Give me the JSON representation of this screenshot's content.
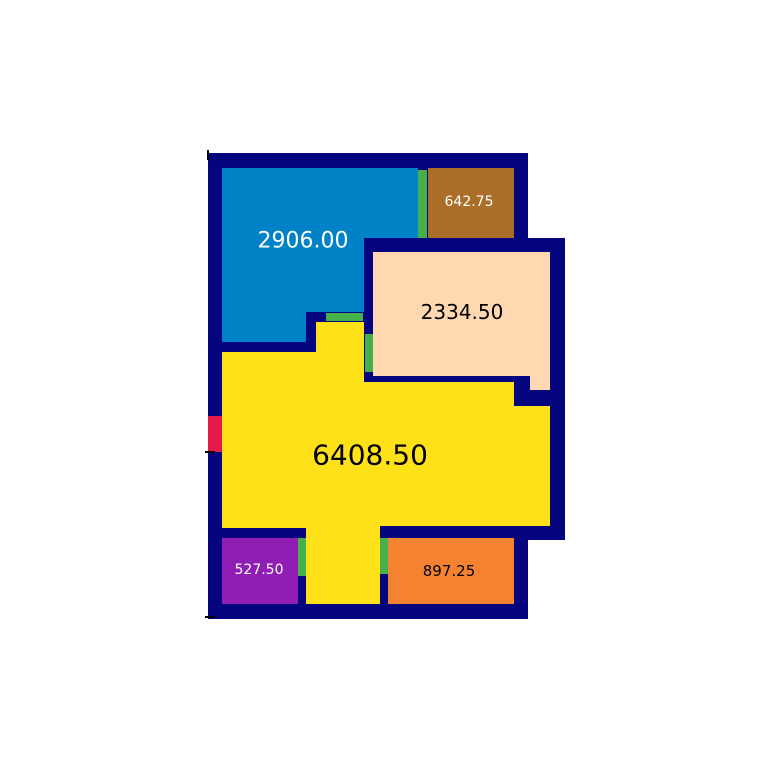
{
  "colors": {
    "background": "#ffffff",
    "wall": "#04047e",
    "door": "#46b04a",
    "entrance": "#e6194b",
    "main_room": "#ffe119",
    "room_blue": "#0082c8",
    "room_brown": "#aa6e28",
    "room_peach": "#ffd8b1",
    "room_purple": "#911eb4",
    "room_orange": "#f58231"
  },
  "rooms": [
    {
      "id": "room-blue",
      "area": "2906.00",
      "color": "#0082c8",
      "text_color": "#ffffff"
    },
    {
      "id": "room-brown",
      "area": "642.75",
      "color": "#aa6e28",
      "text_color": "#ffffff"
    },
    {
      "id": "room-peach",
      "area": "2334.50",
      "color": "#ffd8b1",
      "text_color": "#000000"
    },
    {
      "id": "room-yellow",
      "area": "6408.50",
      "color": "#ffe119",
      "text_color": "#000000"
    },
    {
      "id": "room-purple",
      "area": "527.50",
      "color": "#911eb4",
      "text_color": "#ffffff"
    },
    {
      "id": "room-orange",
      "area": "897.25",
      "color": "#f58231",
      "text_color": "#000000"
    }
  ]
}
